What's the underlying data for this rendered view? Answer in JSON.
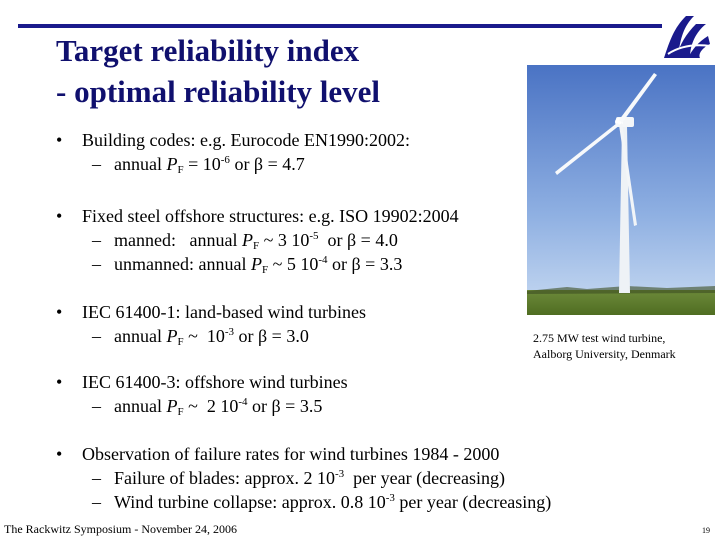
{
  "title": {
    "line1": "Target reliability index",
    "line2": "- optimal reliability level"
  },
  "bullets": [
    {
      "label": "Building codes: e.g. Eurocode EN1990:2002:",
      "subs": [
        {
          "pre": "annual ",
          "var": "P",
          "subscript": "F",
          "mid": " = 10",
          "sup": "-6",
          "post": " or β = 4.7"
        }
      ]
    },
    {
      "label": "Fixed steel offshore structures: e.g. ISO 19902:2004",
      "subs": [
        {
          "pre": "manned:   annual ",
          "var": "P",
          "subscript": "F",
          "mid": " ~ 3 10",
          "sup": "-5",
          "post": "  or β = 4.0"
        },
        {
          "pre": "unmanned: annual ",
          "var": "P",
          "subscript": "F",
          "mid": " ~ 5 10",
          "sup": "-4",
          "post": " or β = 3.3"
        }
      ]
    },
    {
      "label": "IEC 61400-1: land-based wind turbines",
      "subs": [
        {
          "pre": "annual ",
          "var": "P",
          "subscript": "F",
          "mid": " ~  10",
          "sup": "-3",
          "post": " or β = 3.0"
        }
      ]
    },
    {
      "label": "IEC 61400-3: offshore wind turbines",
      "subs": [
        {
          "pre": "annual ",
          "var": "P",
          "subscript": "F",
          "mid": " ~  2 10",
          "sup": "-4",
          "post": " or β = 3.5"
        }
      ]
    },
    {
      "label": "Observation of failure rates for wind turbines 1984 - 2000",
      "subs": [
        {
          "pre": "Failure of blades: approx. 2 10",
          "var": "",
          "subscript": "",
          "mid": "",
          "sup": "-3",
          "post": "  per year (decreasing)"
        },
        {
          "pre": "Wind turbine collapse: approx. 0.8 10",
          "var": "",
          "subscript": "",
          "mid": "",
          "sup": "-3",
          "post": " per year (decreasing)"
        }
      ]
    }
  ],
  "photo_caption": {
    "line1": "2.75 MW test wind turbine,",
    "line2": "Aalborg University, Denmark"
  },
  "footer": {
    "left": "The Rackwitz Symposium - November 24,  2006",
    "page": "19"
  },
  "icons": {
    "logo": "aalborg-university-logo",
    "photo": "wind-turbine-photo"
  },
  "colors": {
    "title": "#10106e",
    "rule": "#1a1a8c"
  }
}
